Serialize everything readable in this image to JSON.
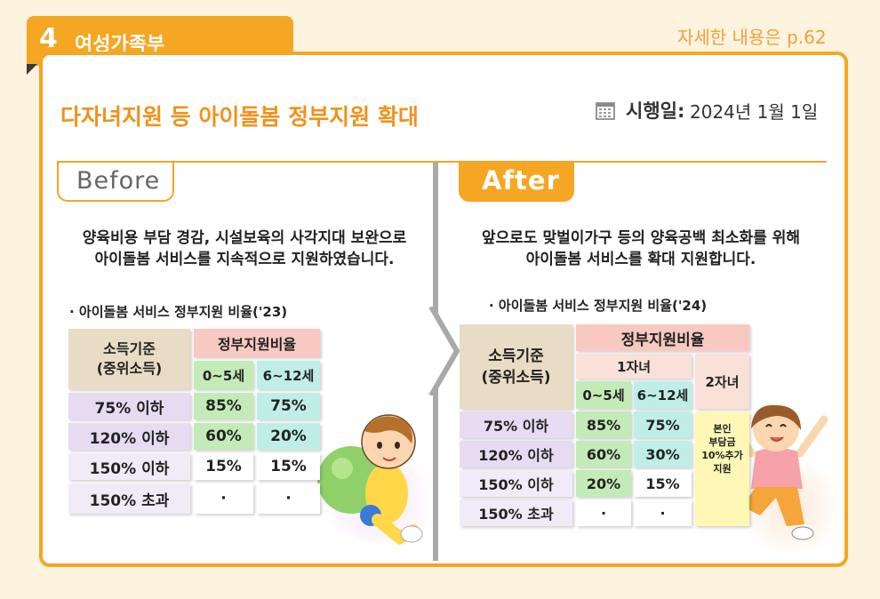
{
  "header": {
    "number": "4",
    "ministry": "여성가족부",
    "reference": "자세한 내용은 p.62"
  },
  "main": {
    "title": "다자녀지원 등 아이돌봄 정부지원 확대",
    "date_label": "시행일",
    "date_colon": ":",
    "date_value": "2024년 1월 1일"
  },
  "before": {
    "tag": "Before",
    "desc_line1": "양육비용 부담 경감, 시설보육의 사각지대 보완으로",
    "desc_line2": "아이돌봄 서비스를 지속적으로 지원하였습니다.",
    "subtitle": "· 아이돌봄 서비스 정부지원 비율('23)",
    "table": {
      "income_header_1": "소득기준",
      "income_header_2": "(중위소득)",
      "support_header": "정부지원비율",
      "col1": "0~5세",
      "col2": "6~12세",
      "rows": [
        {
          "label": "75% 이하",
          "v1": "85%",
          "v2": "75%"
        },
        {
          "label": "120% 이하",
          "v1": "60%",
          "v2": "20%"
        },
        {
          "label": "150% 이하",
          "v1": "15%",
          "v2": "15%"
        },
        {
          "label": "150% 초과",
          "v1": "·",
          "v2": "·"
        }
      ]
    }
  },
  "after": {
    "tag": "After",
    "desc_line1": "앞으로도 맞벌이가구 등의 양육공백 최소화를 위해",
    "desc_line2": "아이돌봄 서비스를 확대 지원합니다.",
    "subtitle": "· 아이돌봄 서비스 정부지원 비율('24)",
    "table": {
      "income_header_1": "소득기준",
      "income_header_2": "(중위소득)",
      "support_header": "정부지원비율",
      "child1_header": "1자녀",
      "child2_header": "2자녀",
      "col1": "0~5세",
      "col2": "6~12세",
      "rows": [
        {
          "label": "75% 이하",
          "v1": "85%",
          "v2": "75%"
        },
        {
          "label": "120% 이하",
          "v1": "60%",
          "v2": "30%"
        },
        {
          "label": "150% 이하",
          "v1": "20%",
          "v2": "15%"
        },
        {
          "label": "150% 초과",
          "v1": "·",
          "v2": "·"
        }
      ],
      "second_child_line1": "본인",
      "second_child_line2": "부담금",
      "second_child_line3": "10%추가",
      "second_child_line4": "지원"
    }
  },
  "colors": {
    "accent": "#f5a623",
    "title": "#f0921c",
    "background": "#fdf3df"
  },
  "icons": [
    "calendar-icon",
    "baby-with-ball-illustration",
    "girl-jumping-illustration"
  ]
}
